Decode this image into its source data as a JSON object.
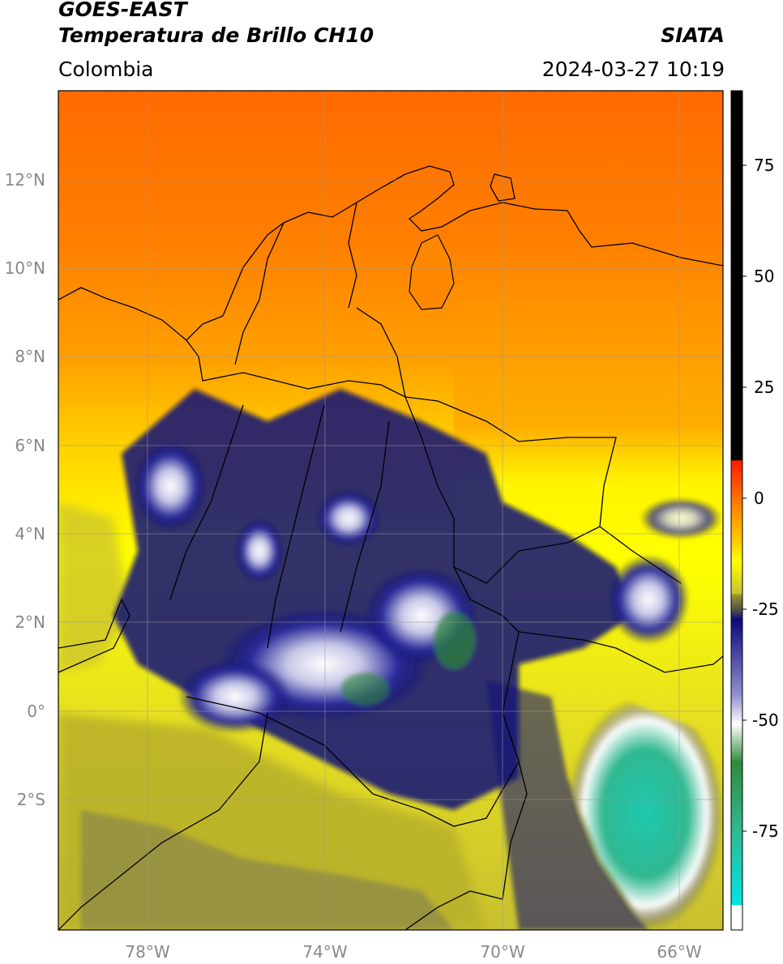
{
  "header": {
    "satellite": "GOES-EAST",
    "product": "Temperatura de Brillo CH10",
    "organization": "SIATA",
    "region": "Colombia",
    "timestamp": "2024-03-27 10:19"
  },
  "axes": {
    "lon_labels": [
      "78°W",
      "74°W",
      "70°W",
      "66°W"
    ],
    "lat_labels": [
      "12°N",
      "10°N",
      "8°N",
      "6°N",
      "4°N",
      "2°N",
      "0°",
      "2°S"
    ]
  },
  "colorbar": {
    "tick_labels": [
      "75",
      "50",
      "25",
      "0",
      "-25",
      "-50",
      "-75"
    ],
    "colors": {
      "hot_black": "#000000",
      "red": "#ff1a00",
      "orange": "#ff8c00",
      "yellow": "#ffff00",
      "olive": "#9a9a2a",
      "navy": "#0a0a7a",
      "white": "#ffffff",
      "green": "#2e8b3a",
      "cyan": "#00e5e5"
    }
  }
}
